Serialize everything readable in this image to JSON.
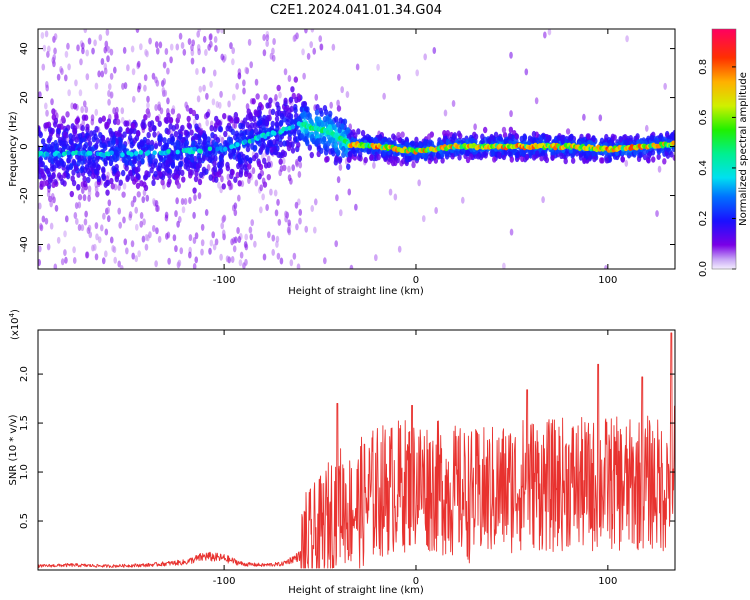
{
  "title": "C2E1.2024.041.01.34.G04",
  "colors": {
    "snr_line": "#e8322f",
    "axis": "#000000",
    "background": "#ffffff"
  },
  "chart_data": [
    {
      "type": "heatmap",
      "xlabel": "Height of straight line (km)",
      "ylabel": "Frequency (Hz)",
      "xlim": [
        -197,
        135
      ],
      "ylim": [
        -50,
        48
      ],
      "x_ticks": [
        -100,
        0,
        100
      ],
      "x_tick_labels": [
        "-100",
        "0",
        "100"
      ],
      "y_ticks": [
        -40,
        -20,
        0,
        20,
        40
      ],
      "y_tick_labels": [
        "-40",
        "-20",
        "0",
        "20",
        "40"
      ],
      "colorbar": {
        "label": "Normalized spectral amplitude",
        "range": [
          0,
          0.95
        ],
        "ticks": [
          0.0,
          0.2,
          0.4,
          0.6,
          0.8
        ],
        "tick_labels": [
          "0.0",
          "0.2",
          "0.4",
          "0.6",
          "0.8"
        ],
        "colormap": "rainbow"
      },
      "ridge": {
        "x": [
          -197,
          -150,
          -100,
          -80,
          -60,
          -45,
          -35,
          -20,
          0,
          20,
          40,
          60,
          80,
          100,
          120,
          135
        ],
        "y": [
          -3,
          -3,
          -1,
          4,
          9,
          6,
          1,
          0,
          -2,
          0,
          0,
          0,
          0,
          -1,
          0,
          1
        ]
      }
    },
    {
      "type": "line",
      "xlabel": "Height of straight line (km)",
      "ylabel": "SNR (10 * v/v)",
      "y_multiplier_label": "(x10",
      "y_multiplier_exp": "4",
      "y_multiplier_close": ")",
      "xlim": [
        -197,
        135
      ],
      "ylim": [
        0,
        2.45
      ],
      "x_ticks": [
        -100,
        0,
        100
      ],
      "x_tick_labels": [
        "-100",
        "0",
        "100"
      ],
      "y_ticks": [
        0.5,
        1.0,
        1.5,
        2.0
      ],
      "y_tick_labels": [
        "0.5",
        "1.0",
        "1.5",
        "2.0"
      ],
      "series": [
        {
          "x": [
            -197,
            -180,
            -160,
            -140,
            -120,
            -110,
            -100,
            -90,
            -80,
            -70,
            -60,
            -50,
            -45,
            -40,
            -35,
            -30,
            -20,
            -10,
            0,
            10,
            20,
            30,
            40,
            50,
            60,
            70,
            80,
            90,
            100,
            110,
            120,
            130,
            135
          ],
          "y": [
            0.04,
            0.05,
            0.04,
            0.05,
            0.08,
            0.14,
            0.12,
            0.06,
            0.05,
            0.06,
            0.15,
            0.35,
            0.55,
            0.7,
            0.6,
            0.65,
            0.8,
            0.85,
            0.9,
            0.85,
            0.8,
            0.75,
            0.8,
            0.85,
            0.9,
            0.85,
            0.9,
            0.85,
            0.9,
            0.85,
            0.9,
            0.85,
            1.1
          ],
          "peaks": [
            {
              "x": -41,
              "y": 1.7
            },
            {
              "x": -2,
              "y": 1.68
            },
            {
              "x": 58,
              "y": 1.84
            },
            {
              "x": 95,
              "y": 2.1
            },
            {
              "x": 118,
              "y": 1.97
            },
            {
              "x": 133,
              "y": 2.42
            }
          ]
        }
      ]
    }
  ]
}
